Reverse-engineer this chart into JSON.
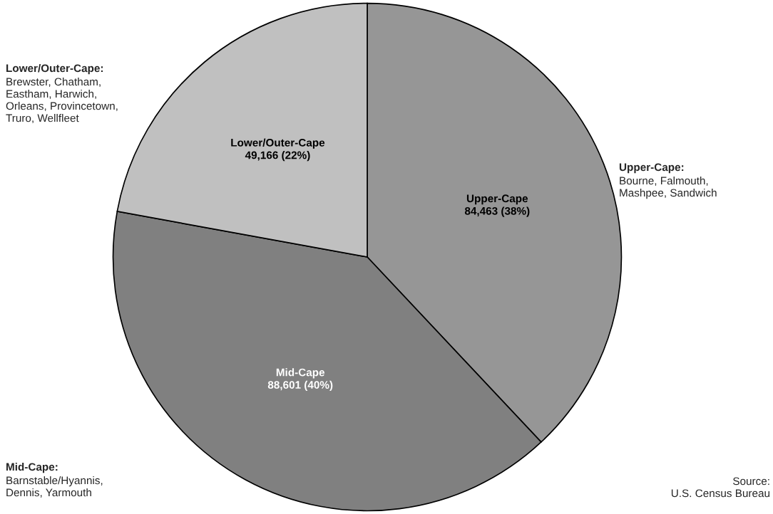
{
  "chart_data": {
    "type": "pie",
    "categories": [
      "Upper-Cape",
      "Mid-Cape",
      "Lower/Outer-Cape"
    ],
    "values": [
      84463,
      88601,
      49166
    ],
    "colors": [
      "#969696",
      "#808080",
      "#c0c0c0"
    ],
    "value_labels": [
      "84,463 (38%)",
      "88,601 (40%)",
      "49,166 (22%)"
    ],
    "annotations": [
      "Lower/Outer-Cape:",
      "Brewster, Chatham,\nEastham, Harwich,\nOrleans, Provincetown,\nTruro, Wellfleet",
      "Upper-Cape:",
      "Bourne, Falmouth,\nMashpee, Sandwich",
      "Mid-Cape:",
      "Barnstable/Hyannis,\nDennis, Yarmouth",
      "Source:\nU.S. Census Bureau"
    ]
  }
}
